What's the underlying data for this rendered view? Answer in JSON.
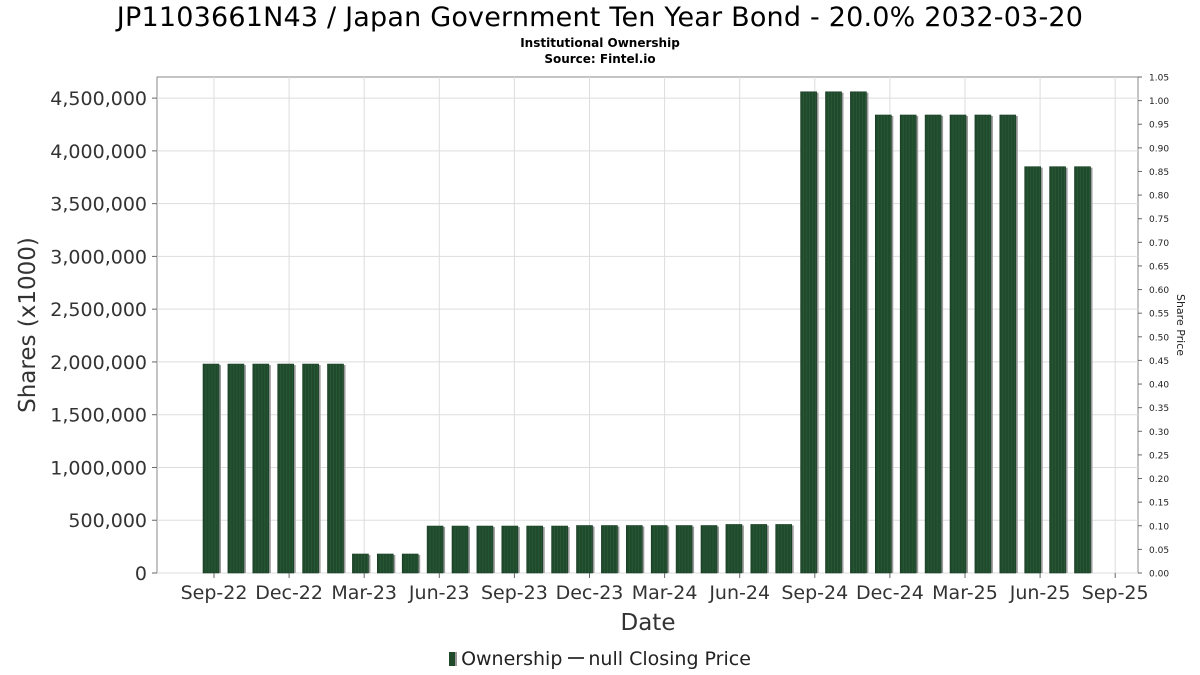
{
  "title": "JP1103661N43 / Japan Government Ten Year Bond - 20.0% 2032-03-20",
  "subtitle": "Institutional Ownership",
  "source": "Source: Fintel.io",
  "legend": {
    "ownership": "Ownership",
    "price": "null Closing Price"
  },
  "colors": {
    "bar": "#1f4a2c",
    "bar_shadow": "#9a9a9a",
    "grid": "#dddddd",
    "frame": "#888888"
  },
  "chart_data": {
    "type": "bar",
    "xlabel": "Date",
    "ylabel": "Shares (x1000)",
    "y2label": "Share Price",
    "ylim": [
      0,
      4700000
    ],
    "y2lim": [
      0,
      1.05
    ],
    "grid": true,
    "legend_position": "bottom-center",
    "y_ticks": [
      "0",
      "500,000",
      "1,000,000",
      "1,500,000",
      "2,000,000",
      "2,500,000",
      "3,000,000",
      "3,500,000",
      "4,000,000",
      "4,500,000"
    ],
    "y_tick_values": [
      0,
      500000,
      1000000,
      1500000,
      2000000,
      2500000,
      3000000,
      3500000,
      4000000,
      4500000
    ],
    "y2_ticks": [
      "0.00",
      "0.05",
      "0.10",
      "0.15",
      "0.20",
      "0.25",
      "0.30",
      "0.35",
      "0.40",
      "0.45",
      "0.50",
      "0.55",
      "0.60",
      "0.65",
      "0.70",
      "0.75",
      "0.80",
      "0.85",
      "0.90",
      "0.95",
      "1.00",
      "1.05"
    ],
    "x_ticks": [
      "Sep-22",
      "Dec-22",
      "Mar-23",
      "Jun-23",
      "Sep-23",
      "Dec-23",
      "Mar-24",
      "Jun-24",
      "Sep-24",
      "Dec-24",
      "Mar-25",
      "Jun-25",
      "Sep-25"
    ],
    "series": [
      {
        "name": "Ownership",
        "values": [
          1980000,
          1980000,
          1980000,
          1980000,
          1980000,
          1980000,
          180000,
          180000,
          180000,
          445000,
          445000,
          445000,
          445000,
          445000,
          445000,
          450000,
          450000,
          450000,
          450000,
          450000,
          450000,
          460000,
          460000,
          460000,
          4560000,
          4560000,
          4560000,
          4340000,
          4340000,
          4340000,
          4340000,
          4340000,
          4340000,
          3850000,
          3850000,
          3850000
        ]
      }
    ]
  }
}
